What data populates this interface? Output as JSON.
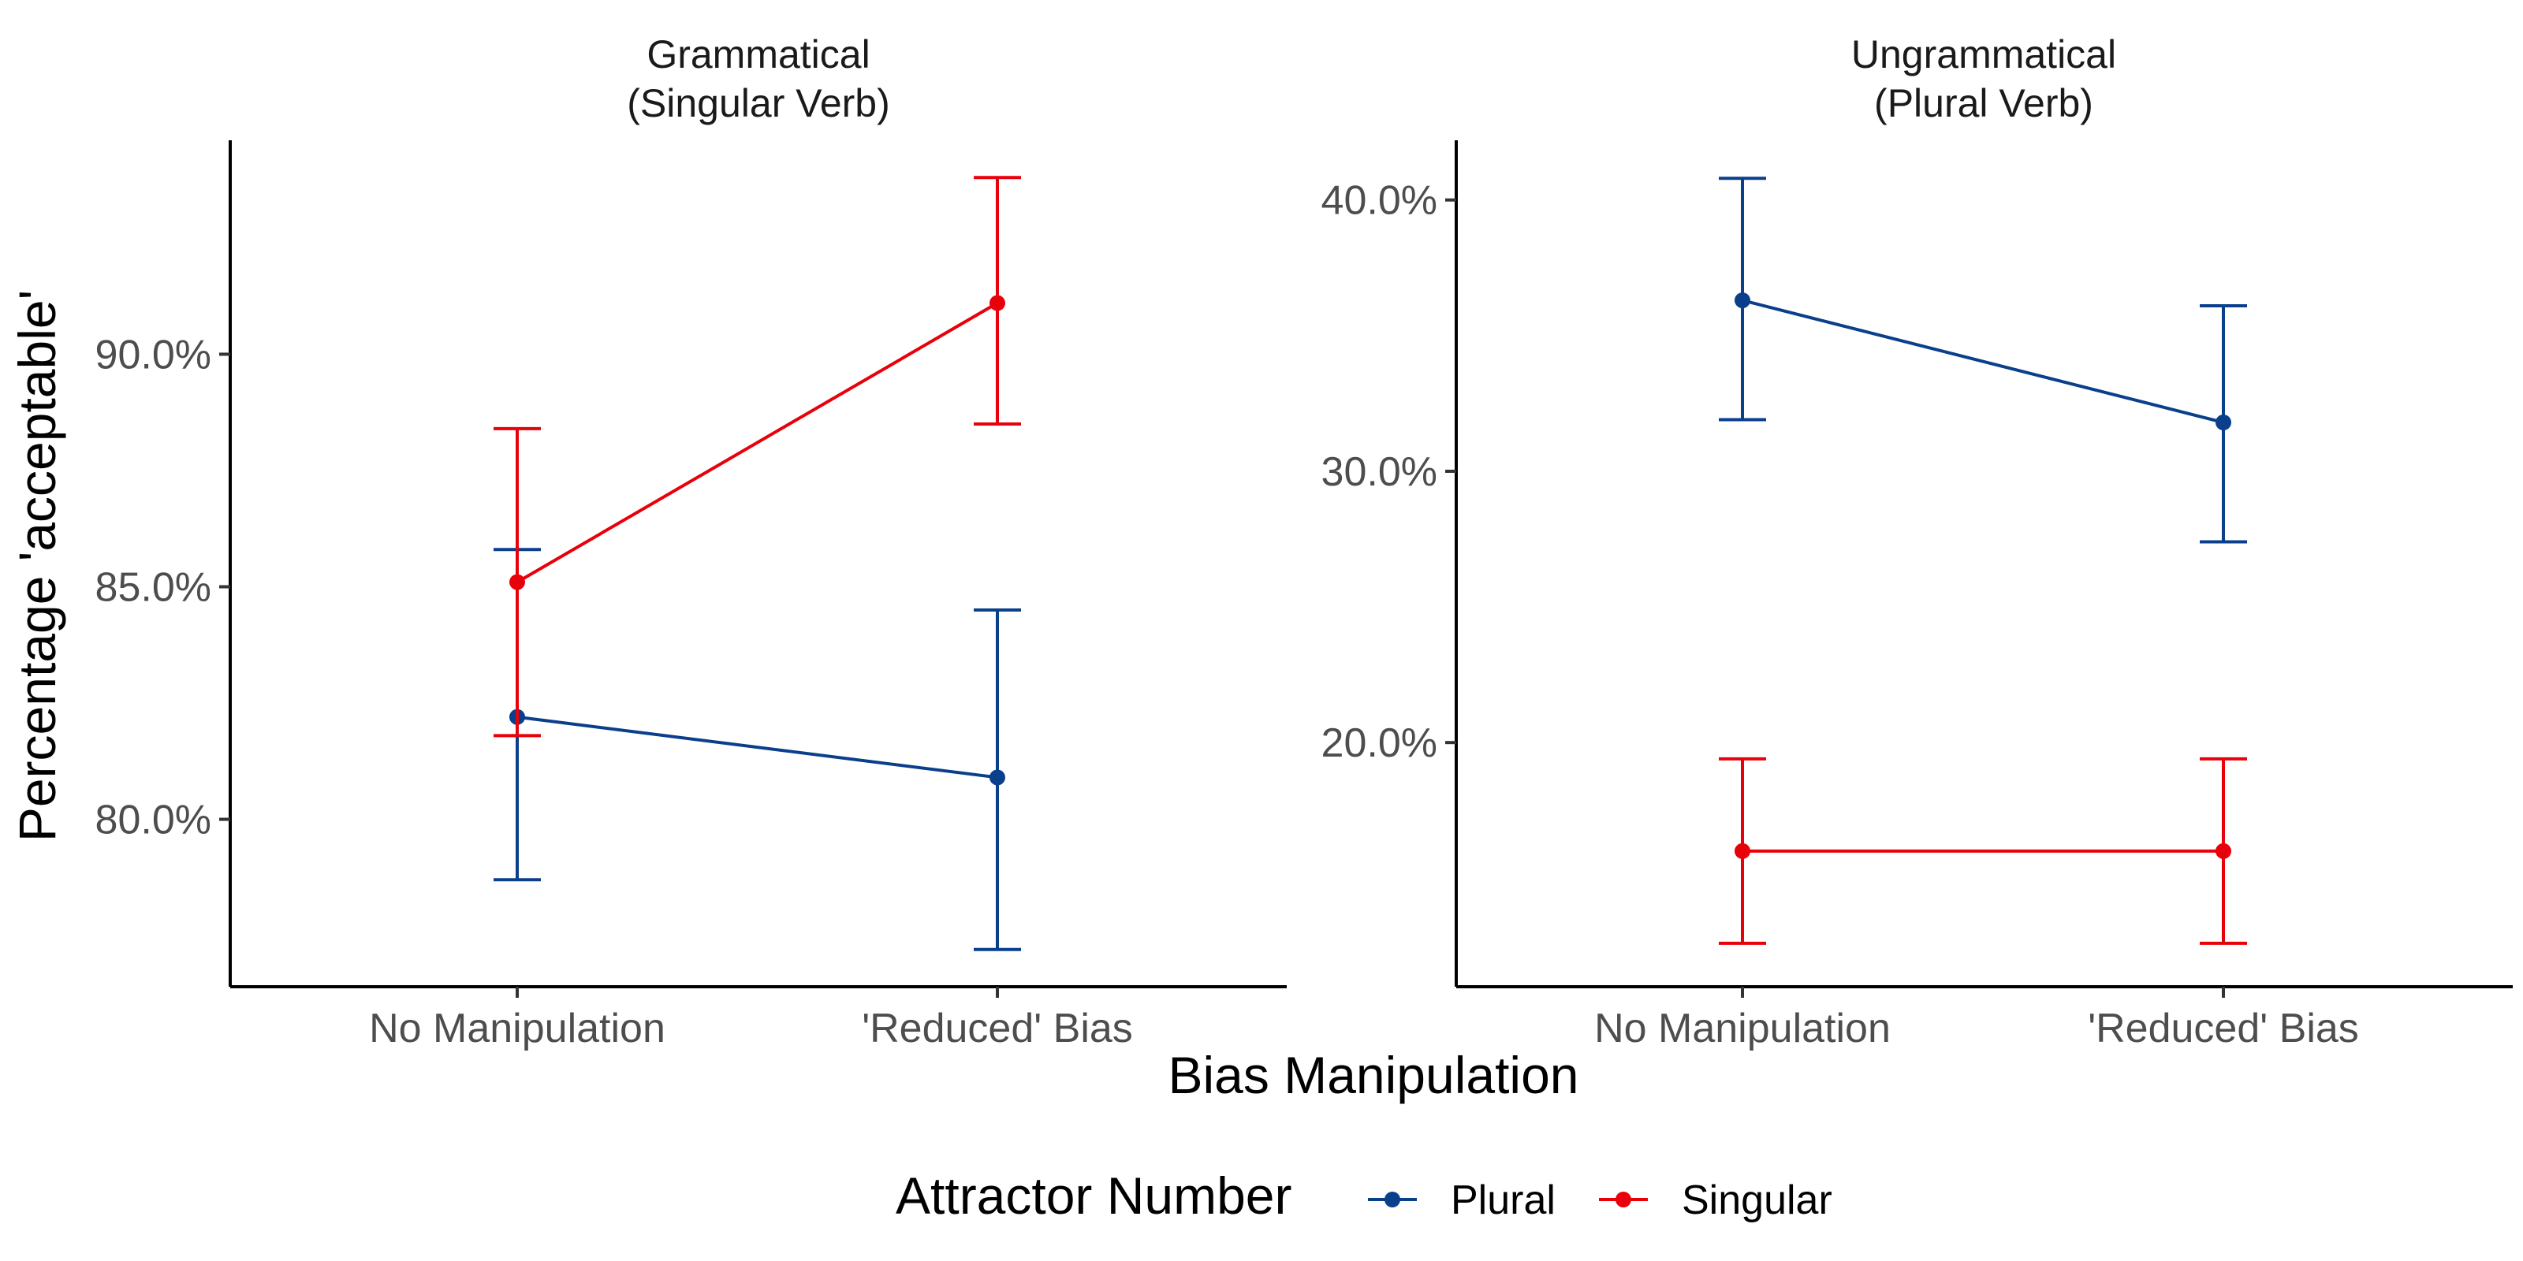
{
  "chart_data": {
    "type": "line",
    "ylabel": "Percentage 'acceptable'",
    "xlabel": "Bias Manipulation",
    "categories": [
      "No Manipulation",
      "'Reduced' Bias"
    ],
    "legend": {
      "title": "Attractor Number",
      "placement": "bottom",
      "entries": [
        {
          "name": "Plural",
          "color": "#0a3f8c"
        },
        {
          "name": "Singular",
          "color": "#e8000b"
        }
      ]
    },
    "grid": false,
    "error_bars": true,
    "panels": [
      {
        "title_line1": "Grammatical",
        "title_line2": "(Singular Verb)",
        "ylim": [
          76.4,
          94.6
        ],
        "yticks": [
          80,
          85,
          90
        ],
        "ytick_labels": [
          "80.0%",
          "85.0%",
          "90.0%"
        ],
        "series": [
          {
            "name": "Plural",
            "color": "#0a3f8c",
            "values": [
              82.2,
              80.9
            ],
            "lower": [
              78.7,
              77.2
            ],
            "upper": [
              85.8,
              84.5
            ]
          },
          {
            "name": "Singular",
            "color": "#e8000b",
            "values": [
              85.1,
              91.1
            ],
            "lower": [
              81.8,
              88.5
            ],
            "upper": [
              88.4,
              93.8
            ]
          }
        ]
      },
      {
        "title_line1": "Ungrammatical",
        "title_line2": "(Plural Verb)",
        "ylim": [
          11.0,
          42.2
        ],
        "yticks": [
          20,
          30,
          40
        ],
        "ytick_labels": [
          "20.0%",
          "30.0%",
          "40.0%"
        ],
        "series": [
          {
            "name": "Plural",
            "color": "#0a3f8c",
            "values": [
              36.3,
              31.8
            ],
            "lower": [
              31.9,
              27.4
            ],
            "upper": [
              40.8,
              36.1
            ]
          },
          {
            "name": "Singular",
            "color": "#e8000b",
            "values": [
              16.0,
              16.0
            ],
            "lower": [
              12.6,
              12.6
            ],
            "upper": [
              19.4,
              19.4
            ]
          }
        ]
      }
    ]
  }
}
